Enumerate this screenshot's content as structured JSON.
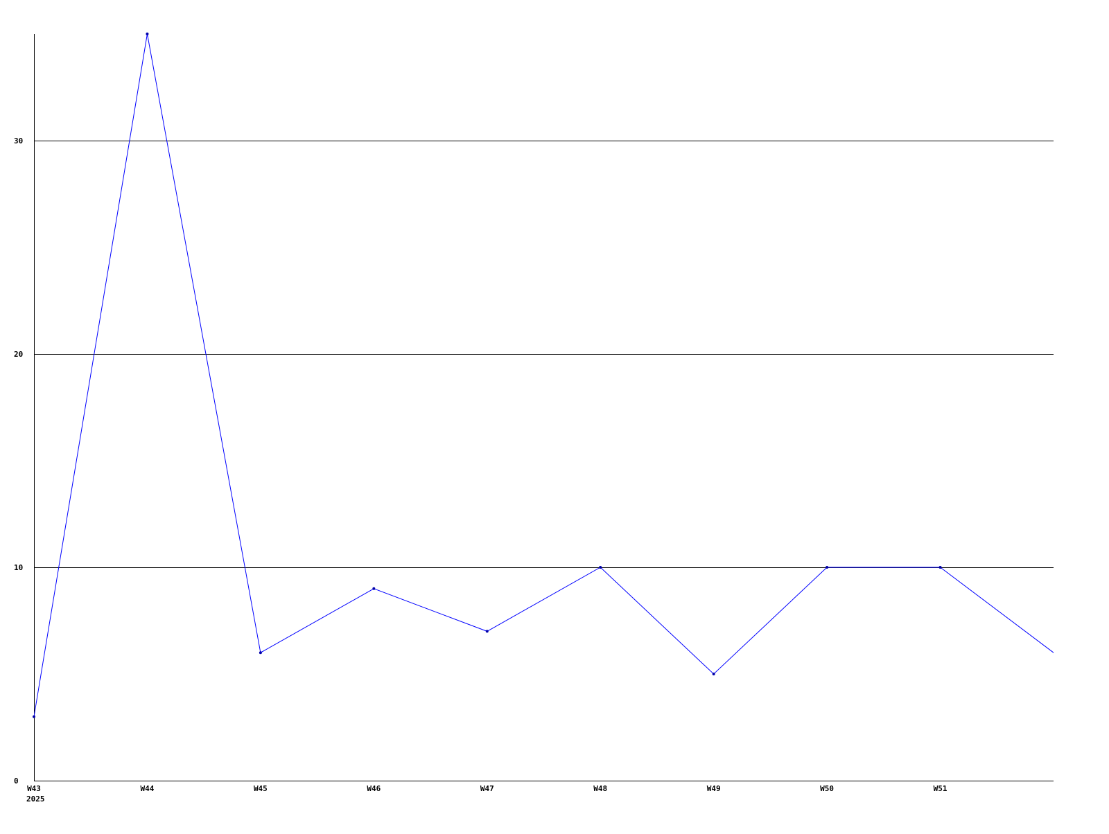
{
  "chart_data": {
    "type": "line",
    "title": "",
    "xlabel": "",
    "ylabel": "",
    "tick_labels": [
      "W43",
      "W44",
      "W45",
      "W46",
      "W47",
      "W48",
      "W49",
      "W50",
      "W51"
    ],
    "year_label": "2025",
    "values": [
      3,
      35,
      6,
      9,
      7,
      10,
      5,
      10,
      10,
      6
    ],
    "ylim": [
      0,
      35
    ],
    "yticks": [
      0,
      10,
      20,
      30
    ],
    "grid": "horizontal",
    "line_color": "#0000ff",
    "grid_color": "#000000"
  }
}
